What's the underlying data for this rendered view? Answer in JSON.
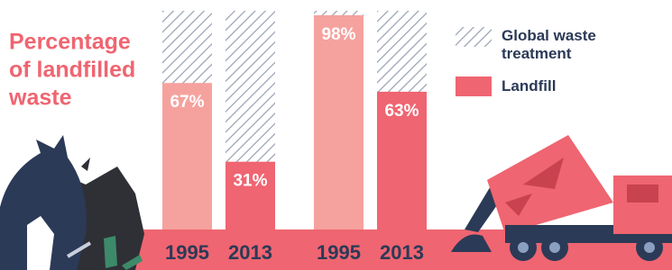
{
  "chart_data": {
    "type": "bar",
    "title": [
      "Percentage",
      "of landfilled",
      "waste"
    ],
    "groups": [
      {
        "categories": [
          "1995",
          "2013"
        ],
        "values": [
          67,
          31
        ],
        "value_labels": [
          "67%",
          "31%"
        ]
      },
      {
        "categories": [
          "1995",
          "2013"
        ],
        "values": [
          98,
          63
        ],
        "value_labels": [
          "98%",
          "63%"
        ]
      }
    ],
    "colors": [
      "#f5a29e",
      "#ef6571"
    ],
    "hatch_color": "#9aa3b4",
    "ylim": [
      0,
      100
    ],
    "legend": [
      {
        "name": "Global waste treatment"
      },
      {
        "name": "Landfill",
        "color": "#ef6571"
      }
    ]
  }
}
